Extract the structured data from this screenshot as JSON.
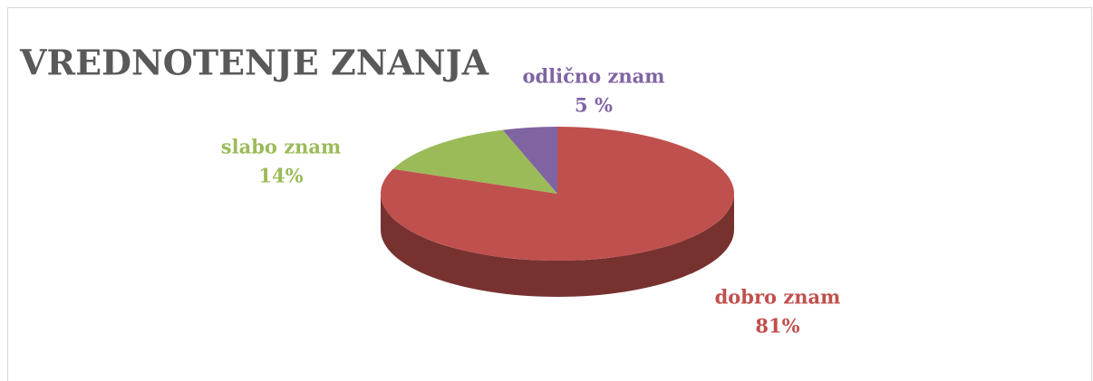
{
  "chart_data": {
    "type": "pie",
    "title": "VREDNOTENJE ZNANJA",
    "categories": [
      "dobro znam",
      "slabo znam",
      "odlično znam"
    ],
    "values": [
      81,
      14,
      5
    ],
    "value_labels": [
      "81%",
      "14%",
      "5 %"
    ],
    "colors": [
      "#c0504d",
      "#9bbb59",
      "#8064a2"
    ]
  }
}
